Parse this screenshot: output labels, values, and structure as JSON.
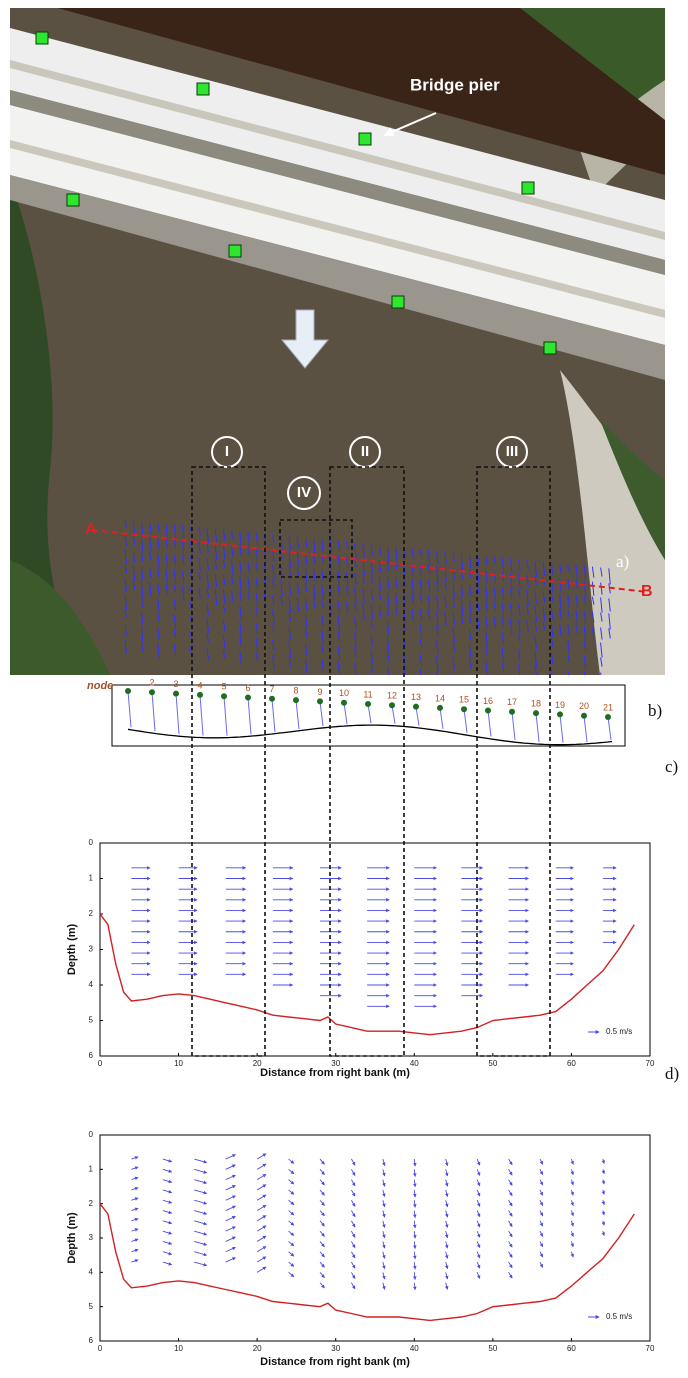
{
  "panel_a": {
    "label": "a)",
    "annotation": "Bridge pier",
    "regions": [
      "I",
      "II",
      "III",
      "IV"
    ],
    "section_start": "A",
    "section_end": "B"
  },
  "panel_b": {
    "label": "b)",
    "node_caption": "node",
    "node_labels": [
      "2",
      "3",
      "4",
      "5",
      "6",
      "7",
      "8",
      "9",
      "10",
      "11",
      "12",
      "13",
      "14",
      "15",
      "16",
      "17",
      "18",
      "19",
      "20",
      "21"
    ]
  },
  "chart_data": [
    {
      "type": "vector",
      "panel_label": "c)",
      "ylabel": "Depth (m)",
      "xlabel": "Distance from right bank (m)",
      "xlim": [
        0,
        70
      ],
      "ylim": [
        6,
        0
      ],
      "xticks": [
        0,
        10,
        20,
        30,
        40,
        50,
        60,
        70
      ],
      "yticks": [
        0,
        1,
        2,
        3,
        4,
        5,
        6
      ],
      "bed_color": "#d42020",
      "vector_color": "#4b4be6",
      "bed": {
        "x": [
          0,
          1,
          2,
          3,
          4,
          6,
          8,
          10,
          12,
          14,
          16,
          18,
          20,
          22,
          24,
          26,
          28,
          29,
          30,
          32,
          34,
          36,
          38,
          40,
          42,
          44,
          46,
          48,
          50,
          52,
          54,
          56,
          58,
          60,
          62,
          64,
          66,
          68
        ],
        "depth": [
          2.0,
          2.3,
          3.4,
          4.2,
          4.45,
          4.4,
          4.3,
          4.25,
          4.3,
          4.4,
          4.5,
          4.6,
          4.7,
          4.85,
          4.9,
          4.95,
          5.0,
          4.9,
          5.1,
          5.2,
          5.3,
          5.3,
          5.3,
          5.35,
          5.4,
          5.35,
          5.3,
          5.2,
          5.0,
          4.95,
          4.9,
          4.85,
          4.75,
          4.4,
          4.0,
          3.6,
          3.0,
          2.3
        ]
      },
      "columns": [
        {
          "x": 4,
          "u": 0.42,
          "w": 0,
          "depths": [
            0.7,
            1.0,
            1.3,
            1.6,
            1.9,
            2.2,
            2.5,
            2.8,
            3.1,
            3.4,
            3.7
          ]
        },
        {
          "x": 10,
          "u": 0.42,
          "w": 0,
          "depths": [
            0.7,
            1.0,
            1.3,
            1.6,
            1.9,
            2.2,
            2.5,
            2.8,
            3.1,
            3.4,
            3.7
          ]
        },
        {
          "x": 16,
          "u": 0.45,
          "w": 0,
          "depths": [
            0.7,
            1.0,
            1.3,
            1.6,
            1.9,
            2.2,
            2.5,
            2.8,
            3.1,
            3.4,
            3.7
          ]
        },
        {
          "x": 22,
          "u": 0.45,
          "w": 0,
          "depths": [
            0.7,
            1.0,
            1.3,
            1.6,
            1.9,
            2.2,
            2.5,
            2.8,
            3.1,
            3.4,
            3.7,
            4.0
          ]
        },
        {
          "x": 28,
          "u": 0.48,
          "w": 0,
          "depths": [
            0.7,
            1.0,
            1.3,
            1.6,
            1.9,
            2.2,
            2.5,
            2.8,
            3.1,
            3.4,
            3.7,
            4.0,
            4.3
          ]
        },
        {
          "x": 34,
          "u": 0.5,
          "w": 0,
          "depths": [
            0.7,
            1.0,
            1.3,
            1.6,
            1.9,
            2.2,
            2.5,
            2.8,
            3.1,
            3.4,
            3.7,
            4.0,
            4.3,
            4.6
          ]
        },
        {
          "x": 40,
          "u": 0.5,
          "w": 0,
          "depths": [
            0.7,
            1.0,
            1.3,
            1.6,
            1.9,
            2.2,
            2.5,
            2.8,
            3.1,
            3.4,
            3.7,
            4.0,
            4.3,
            4.6
          ]
        },
        {
          "x": 46,
          "u": 0.48,
          "w": 0,
          "depths": [
            0.7,
            1.0,
            1.3,
            1.6,
            1.9,
            2.2,
            2.5,
            2.8,
            3.1,
            3.4,
            3.7,
            4.0,
            4.3
          ]
        },
        {
          "x": 52,
          "u": 0.45,
          "w": 0,
          "depths": [
            0.7,
            1.0,
            1.3,
            1.6,
            1.9,
            2.2,
            2.5,
            2.8,
            3.1,
            3.4,
            3.7,
            4.0
          ]
        },
        {
          "x": 58,
          "u": 0.4,
          "w": 0,
          "depths": [
            0.7,
            1.0,
            1.3,
            1.6,
            1.9,
            2.2,
            2.5,
            2.8,
            3.1,
            3.4,
            3.7
          ]
        },
        {
          "x": 64,
          "u": 0.3,
          "w": 0,
          "depths": [
            0.7,
            1.0,
            1.3,
            1.6,
            1.9,
            2.2,
            2.5,
            2.8
          ]
        }
      ],
      "scale": {
        "value": 0.5,
        "label": "0.5 m/s"
      }
    },
    {
      "type": "vector",
      "panel_label": "d)",
      "ylabel": "Depth (m)",
      "xlabel": "Distance from right bank (m)",
      "xlim": [
        0,
        70
      ],
      "ylim": [
        6,
        0
      ],
      "xticks": [
        0,
        10,
        20,
        30,
        40,
        50,
        60,
        70
      ],
      "yticks": [
        0,
        1,
        2,
        3,
        4,
        5,
        6
      ],
      "bed_color": "#d42020",
      "vector_color": "#4b4be6",
      "bed": {
        "x": [
          0,
          1,
          2,
          3,
          4,
          6,
          8,
          10,
          12,
          14,
          16,
          18,
          20,
          22,
          24,
          26,
          28,
          29,
          30,
          32,
          34,
          36,
          38,
          40,
          42,
          44,
          46,
          48,
          50,
          52,
          54,
          56,
          58,
          60,
          62,
          64,
          66,
          68
        ],
        "depth": [
          2.0,
          2.3,
          3.4,
          4.2,
          4.45,
          4.4,
          4.3,
          4.25,
          4.3,
          4.4,
          4.5,
          4.6,
          4.7,
          4.85,
          4.9,
          4.95,
          5.0,
          4.9,
          5.1,
          5.2,
          5.3,
          5.3,
          5.3,
          5.35,
          5.4,
          5.35,
          5.3,
          5.2,
          5.0,
          4.95,
          4.9,
          4.85,
          4.75,
          4.4,
          4.0,
          3.6,
          3.0,
          2.3
        ]
      },
      "columns": [
        {
          "x": 4,
          "u": 0.15,
          "w": -0.05,
          "depths": [
            0.7,
            1.0,
            1.3,
            1.6,
            1.9,
            2.2,
            2.5,
            2.8,
            3.1,
            3.4,
            3.7
          ]
        },
        {
          "x": 8,
          "u": 0.2,
          "w": 0.06,
          "depths": [
            0.7,
            1.0,
            1.3,
            1.6,
            1.9,
            2.2,
            2.5,
            2.8,
            3.1,
            3.4,
            3.7
          ]
        },
        {
          "x": 12,
          "u": 0.28,
          "w": 0.08,
          "depths": [
            0.7,
            1.0,
            1.3,
            1.6,
            1.9,
            2.2,
            2.5,
            2.8,
            3.1,
            3.4,
            3.7
          ]
        },
        {
          "x": 16,
          "u": 0.22,
          "w": -0.1,
          "depths": [
            0.7,
            1.0,
            1.3,
            1.6,
            1.9,
            2.2,
            2.5,
            2.8,
            3.1,
            3.4,
            3.7
          ]
        },
        {
          "x": 20,
          "u": 0.2,
          "w": -0.12,
          "depths": [
            0.7,
            1.0,
            1.3,
            1.6,
            1.9,
            2.2,
            2.5,
            2.8,
            3.1,
            3.4,
            3.7,
            4.0
          ]
        },
        {
          "x": 24,
          "u": 0.12,
          "w": 0.1,
          "depths": [
            0.7,
            1.0,
            1.3,
            1.6,
            1.9,
            2.2,
            2.5,
            2.8,
            3.1,
            3.4,
            3.7,
            4.0
          ]
        },
        {
          "x": 28,
          "u": 0.1,
          "w": 0.12,
          "depths": [
            0.7,
            1.0,
            1.3,
            1.6,
            1.9,
            2.2,
            2.5,
            2.8,
            3.1,
            3.4,
            3.7,
            4.0,
            4.3
          ]
        },
        {
          "x": 32,
          "u": 0.08,
          "w": 0.14,
          "depths": [
            0.7,
            1.0,
            1.3,
            1.6,
            1.9,
            2.2,
            2.5,
            2.8,
            3.1,
            3.4,
            3.7,
            4.0,
            4.3
          ]
        },
        {
          "x": 36,
          "u": 0.04,
          "w": 0.15,
          "depths": [
            0.7,
            1.0,
            1.3,
            1.6,
            1.9,
            2.2,
            2.5,
            2.8,
            3.1,
            3.4,
            3.7,
            4.0,
            4.3
          ]
        },
        {
          "x": 40,
          "u": 0.02,
          "w": 0.16,
          "depths": [
            0.7,
            1.0,
            1.3,
            1.6,
            1.9,
            2.2,
            2.5,
            2.8,
            3.1,
            3.4,
            3.7,
            4.0,
            4.3
          ]
        },
        {
          "x": 44,
          "u": 0.04,
          "w": 0.15,
          "depths": [
            0.7,
            1.0,
            1.3,
            1.6,
            1.9,
            2.2,
            2.5,
            2.8,
            3.1,
            3.4,
            3.7,
            4.0,
            4.3
          ]
        },
        {
          "x": 48,
          "u": 0.06,
          "w": 0.14,
          "depths": [
            0.7,
            1.0,
            1.3,
            1.6,
            1.9,
            2.2,
            2.5,
            2.8,
            3.1,
            3.4,
            3.7,
            4.0
          ]
        },
        {
          "x": 52,
          "u": 0.08,
          "w": 0.13,
          "depths": [
            0.7,
            1.0,
            1.3,
            1.6,
            1.9,
            2.2,
            2.5,
            2.8,
            3.1,
            3.4,
            3.7,
            4.0
          ]
        },
        {
          "x": 56,
          "u": 0.06,
          "w": 0.12,
          "depths": [
            0.7,
            1.0,
            1.3,
            1.6,
            1.9,
            2.2,
            2.5,
            2.8,
            3.1,
            3.4,
            3.7
          ]
        },
        {
          "x": 60,
          "u": 0.04,
          "w": 0.12,
          "depths": [
            0.7,
            1.0,
            1.3,
            1.6,
            1.9,
            2.2,
            2.5,
            2.8,
            3.1,
            3.4
          ]
        },
        {
          "x": 64,
          "u": 0.03,
          "w": 0.1,
          "depths": [
            0.7,
            1.0,
            1.3,
            1.6,
            1.9,
            2.2,
            2.5,
            2.8
          ]
        }
      ],
      "scale": {
        "value": 0.5,
        "label": "0.5 m/s"
      }
    }
  ]
}
